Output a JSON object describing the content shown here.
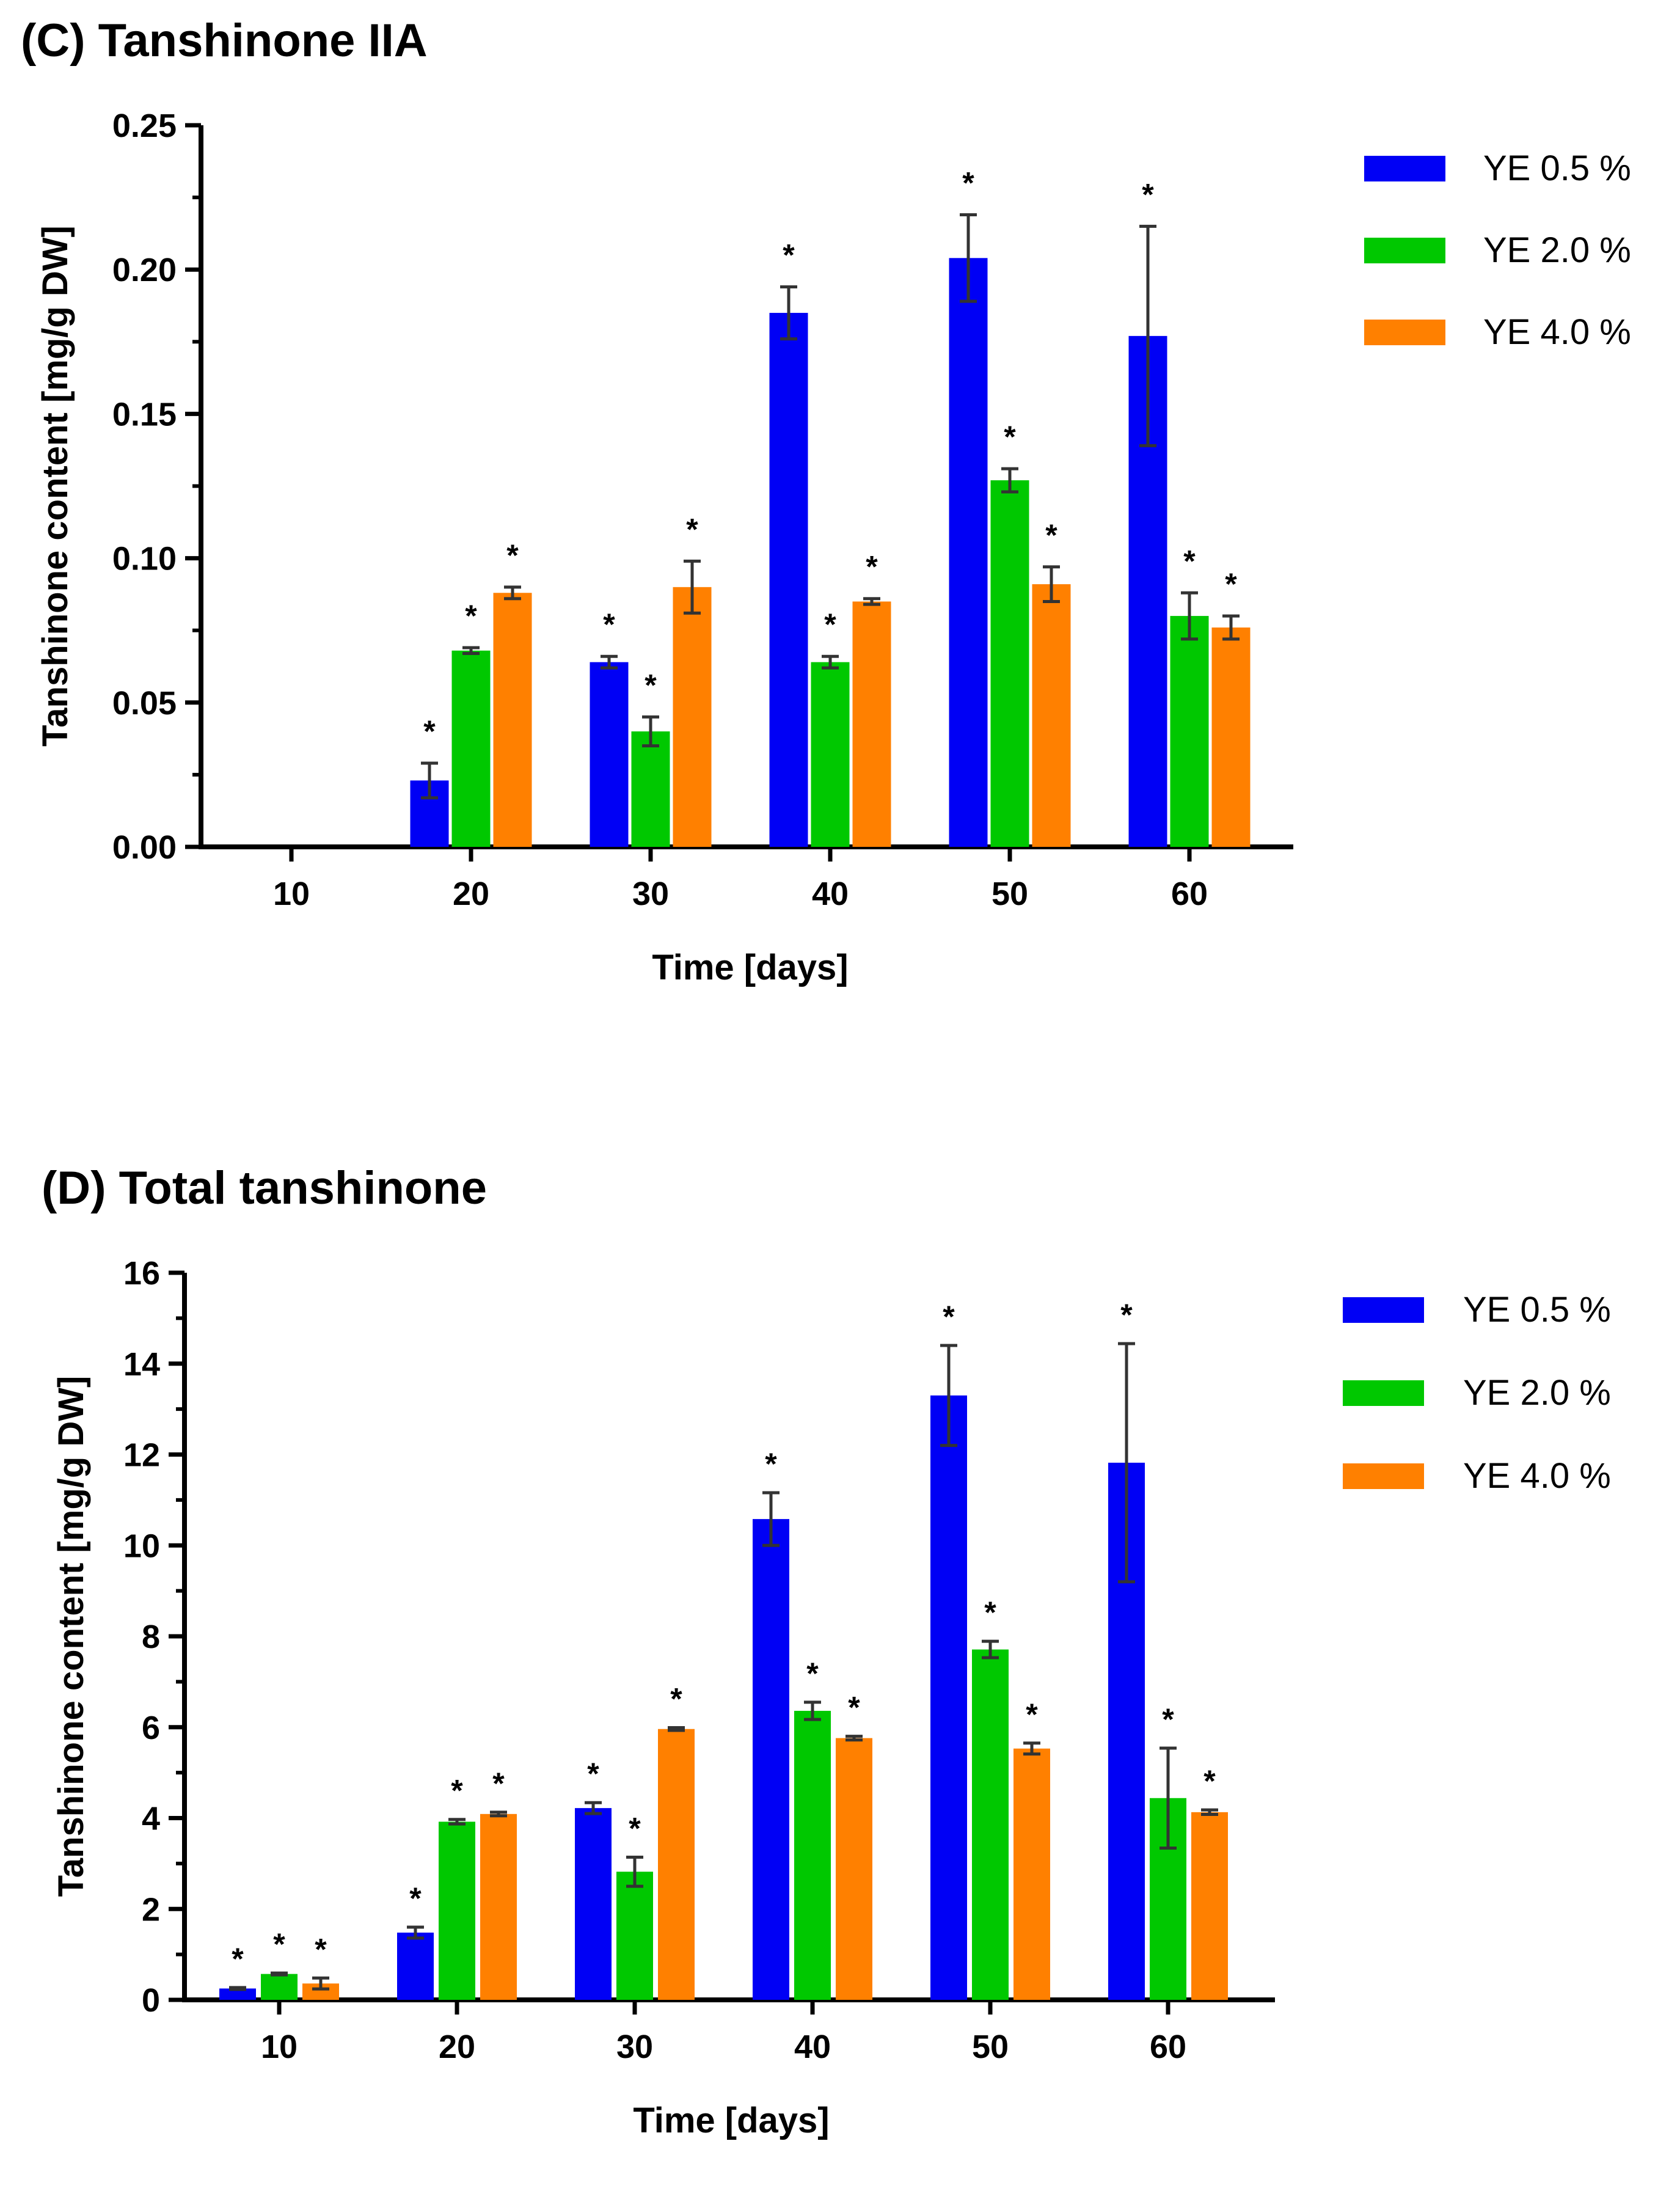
{
  "chart_data": [
    {
      "type": "bar",
      "panel": "C",
      "title": "(C) Tanshinone IIA",
      "xlabel": "Time [days]",
      "ylabel": "Tanshinone content [mg/g DW]",
      "categories": [
        "10",
        "20",
        "30",
        "40",
        "50",
        "60"
      ],
      "ylim": [
        0,
        0.25
      ],
      "yticks": [
        "0.00",
        "0.05",
        "0.10",
        "0.15",
        "0.20",
        "0.25"
      ],
      "legend_position": "top-right",
      "significance_marker": "*",
      "series": [
        {
          "name": "YE 0.5 %",
          "color": "#0000f5",
          "values": [
            0,
            0.023,
            0.064,
            0.185,
            0.204,
            0.177
          ],
          "errors": [
            0,
            0.006,
            0.002,
            0.009,
            0.015,
            0.038
          ],
          "significant": [
            false,
            true,
            true,
            true,
            true,
            true
          ]
        },
        {
          "name": "YE 2.0 %",
          "color": "#00c800",
          "values": [
            0,
            0.068,
            0.04,
            0.064,
            0.127,
            0.08
          ],
          "errors": [
            0,
            0.001,
            0.005,
            0.002,
            0.004,
            0.008
          ],
          "significant": [
            false,
            true,
            true,
            true,
            true,
            true
          ]
        },
        {
          "name": "YE 4.0 %",
          "color": "#ff8000",
          "values": [
            0,
            0.088,
            0.09,
            0.085,
            0.091,
            0.076
          ],
          "errors": [
            0,
            0.002,
            0.009,
            0.001,
            0.006,
            0.004
          ],
          "significant": [
            false,
            true,
            true,
            true,
            true,
            true
          ]
        }
      ]
    },
    {
      "type": "bar",
      "panel": "D",
      "title": "(D) Total tanshinone",
      "xlabel": "Time [days]",
      "ylabel": "Tanshinone content [mg/g DW]",
      "categories": [
        "10",
        "20",
        "30",
        "40",
        "50",
        "60"
      ],
      "ylim": [
        0,
        16
      ],
      "yticks": [
        "0",
        "2",
        "4",
        "6",
        "8",
        "10",
        "12",
        "14",
        "16"
      ],
      "legend_position": "top-right",
      "significance_marker": "*",
      "series": [
        {
          "name": "YE 0.5 %",
          "color": "#0000f5",
          "values": [
            0.25,
            1.48,
            4.22,
            10.58,
            13.3,
            11.82
          ],
          "errors": [
            0.02,
            0.12,
            0.12,
            0.58,
            1.1,
            2.62
          ],
          "significant": [
            true,
            true,
            true,
            true,
            true,
            true
          ]
        },
        {
          "name": "YE 2.0 %",
          "color": "#00c800",
          "values": [
            0.57,
            3.92,
            2.82,
            6.36,
            7.71,
            4.44
          ],
          "errors": [
            0.02,
            0.05,
            0.32,
            0.19,
            0.18,
            1.1
          ],
          "significant": [
            true,
            true,
            true,
            true,
            true,
            true
          ]
        },
        {
          "name": "YE 4.0 %",
          "color": "#ff8000",
          "values": [
            0.36,
            4.09,
            5.96,
            5.76,
            5.53,
            4.13
          ],
          "errors": [
            0.12,
            0.04,
            0.03,
            0.04,
            0.12,
            0.05
          ],
          "significant": [
            true,
            true,
            true,
            true,
            true,
            true
          ]
        }
      ]
    }
  ]
}
